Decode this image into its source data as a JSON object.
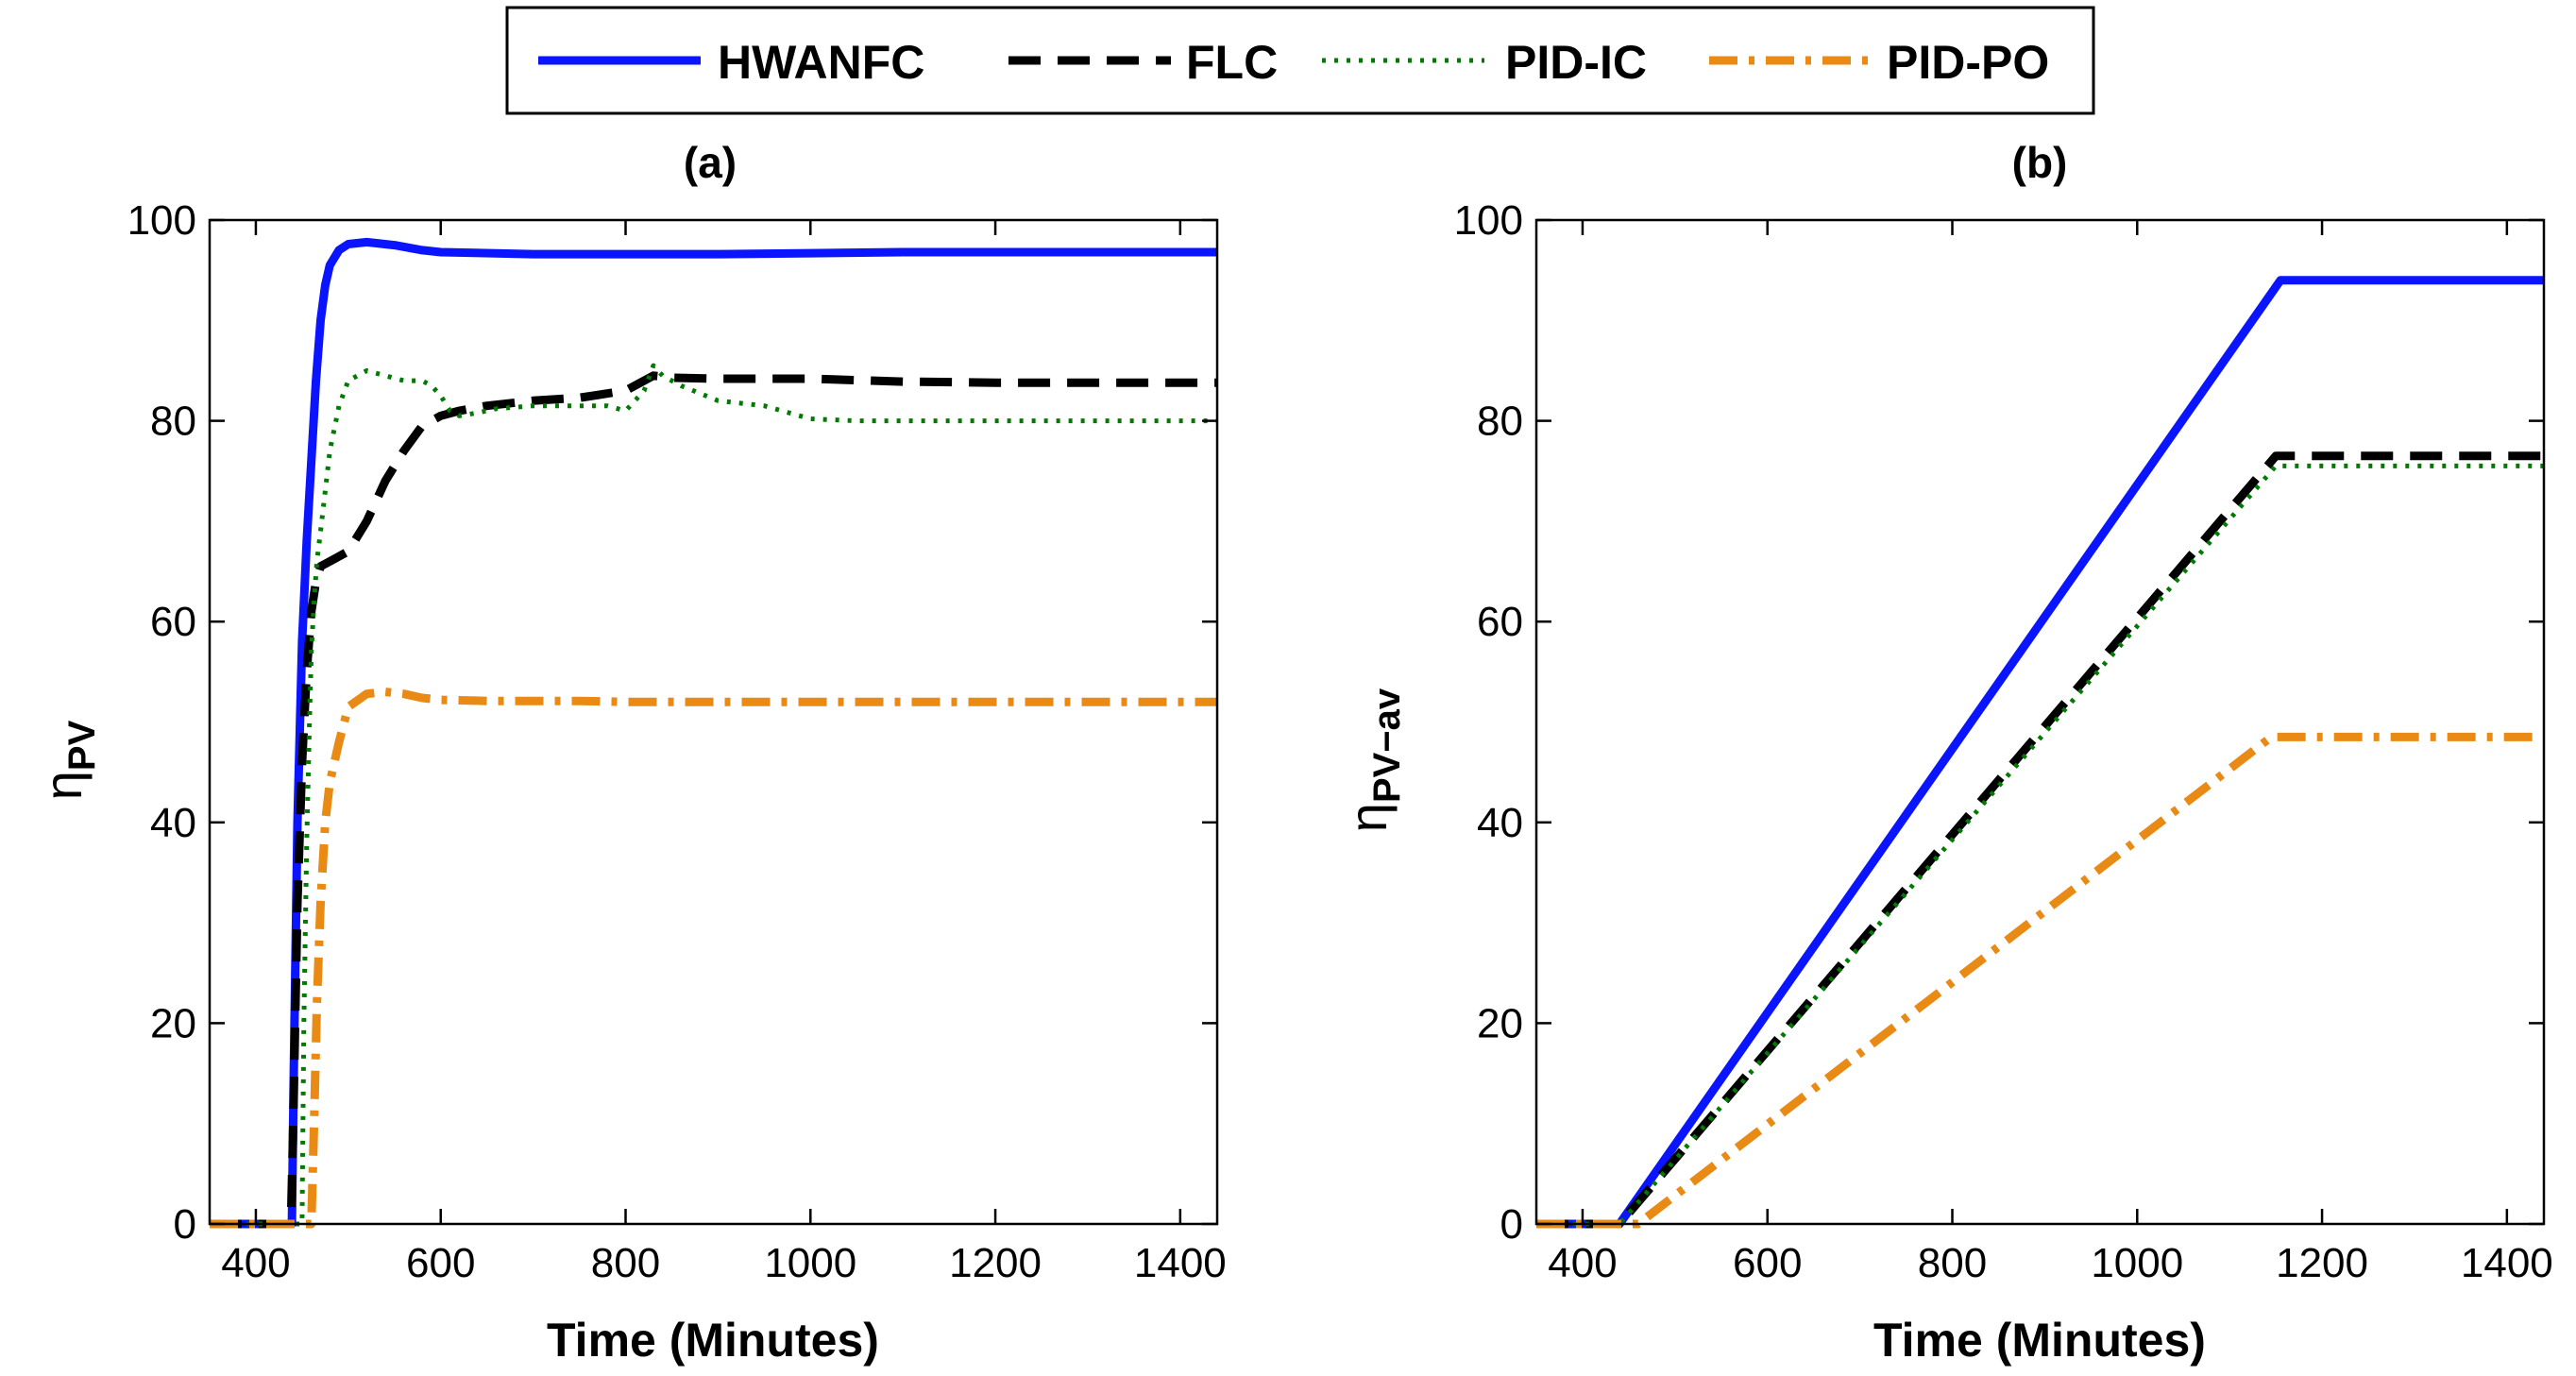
{
  "legend": {
    "entries": [
      "HWANFC",
      "FLC",
      "PID-IC",
      "PID-PO"
    ]
  },
  "series_styles": [
    {
      "name": "HWANFC",
      "color": "#0a14ff",
      "dash": "solid"
    },
    {
      "name": "FLC",
      "color": "#000000",
      "dash": "dashed"
    },
    {
      "name": "PID-IC",
      "color": "#007a00",
      "dash": "dotted"
    },
    {
      "name": "PID-PO",
      "color": "#e88a14",
      "dash": "dash-dot"
    }
  ],
  "chart_data": [
    {
      "type": "line",
      "title": "(a)",
      "xlabel": "Time (Minutes)",
      "ylabel": "η",
      "ylabel_sub": "PV",
      "xlim": [
        350,
        1440
      ],
      "ylim": [
        0,
        100
      ],
      "xticks": [
        400,
        600,
        800,
        1000,
        1200,
        1400
      ],
      "yticks": [
        0,
        20,
        40,
        60,
        80,
        100
      ],
      "xtick_labels": [
        "400",
        "600",
        "800",
        "1000",
        "1200",
        "1400"
      ],
      "ytick_labels": [
        "0",
        "20",
        "40",
        "60",
        "80",
        "100"
      ],
      "grid": false,
      "legend_position": "top-center (shared)",
      "series": [
        {
          "name": "HWANFC",
          "x": [
            350,
            439,
            441,
            445,
            450,
            455,
            460,
            465,
            470,
            475,
            480,
            490,
            500,
            520,
            550,
            580,
            600,
            700,
            800,
            900,
            1000,
            1100,
            1200,
            1300,
            1440
          ],
          "y": [
            0,
            0,
            15,
            40,
            58,
            68,
            76,
            84,
            90,
            93.5,
            95.5,
            97,
            97.6,
            97.8,
            97.5,
            97,
            96.8,
            96.6,
            96.6,
            96.6,
            96.7,
            96.8,
            96.8,
            96.8,
            96.8
          ]
        },
        {
          "name": "FLC",
          "x": [
            350,
            438,
            440,
            445,
            450,
            455,
            460,
            465,
            470,
            480,
            500,
            520,
            540,
            560,
            580,
            600,
            620,
            650,
            700,
            750,
            800,
            830,
            850,
            900,
            1000,
            1100,
            1200,
            1300,
            1440
          ],
          "y": [
            0,
            0,
            8,
            32,
            46,
            55,
            61,
            64,
            65.5,
            66,
            67,
            70,
            74,
            77,
            79.5,
            80.5,
            81,
            81.5,
            82,
            82.3,
            83,
            84.5,
            84.3,
            84.2,
            84.2,
            83.9,
            83.8,
            83.8,
            83.8
          ]
        },
        {
          "name": "PID-IC",
          "x": [
            350,
            450,
            452,
            455,
            458,
            460,
            463,
            466,
            470,
            475,
            480,
            490,
            500,
            520,
            540,
            560,
            580,
            590,
            600,
            610,
            620,
            640,
            660,
            700,
            750,
            780,
            800,
            820,
            830,
            840,
            860,
            900,
            950,
            1000,
            1050,
            1100,
            1200,
            1300,
            1440
          ],
          "y": [
            0,
            0,
            20,
            38,
            50,
            57,
            62,
            66,
            69,
            73,
            77,
            81.5,
            84,
            85,
            84.5,
            84,
            84,
            83.5,
            82.5,
            81,
            80.5,
            80.8,
            81.2,
            81.5,
            81.5,
            81.5,
            81,
            83,
            85.5,
            84.5,
            83.5,
            82,
            81.5,
            80.2,
            80,
            80,
            80,
            80,
            80
          ]
        },
        {
          "name": "PID-PO",
          "x": [
            350,
            460,
            463,
            466,
            470,
            475,
            480,
            490,
            500,
            520,
            540,
            560,
            580,
            600,
            650,
            700,
            750,
            800,
            850,
            900,
            1000,
            1100,
            1200,
            1300,
            1440
          ],
          "y": [
            0,
            0,
            10,
            22,
            32,
            40,
            44,
            48,
            51.5,
            52.8,
            53,
            52.8,
            52.4,
            52.2,
            52.1,
            52.1,
            52.1,
            52,
            52,
            52,
            52,
            52,
            52,
            52,
            52
          ]
        }
      ]
    },
    {
      "type": "line",
      "title": "(b)",
      "xlabel": "Time (Minutes)",
      "ylabel": "η",
      "ylabel_sub": "PV−av",
      "xlim": [
        350,
        1440
      ],
      "ylim": [
        0,
        100
      ],
      "xticks": [
        400,
        600,
        800,
        1000,
        1200,
        1400
      ],
      "yticks": [
        0,
        20,
        40,
        60,
        80,
        100
      ],
      "xtick_labels": [
        "400",
        "600",
        "800",
        "1000",
        "1200",
        "1400"
      ],
      "ytick_labels": [
        "0",
        "20",
        "40",
        "60",
        "80",
        "100"
      ],
      "grid": false,
      "legend_position": "top-center (shared)",
      "series": [
        {
          "name": "HWANFC",
          "x": [
            350,
            440,
            1155,
            1440
          ],
          "y": [
            0,
            0,
            94,
            94
          ]
        },
        {
          "name": "FLC",
          "x": [
            350,
            440,
            1150,
            1440
          ],
          "y": [
            0,
            0,
            76.5,
            76.5
          ]
        },
        {
          "name": "PID-IC",
          "x": [
            350,
            440,
            1150,
            1440
          ],
          "y": [
            0,
            0,
            75.5,
            75.5
          ]
        },
        {
          "name": "PID-PO",
          "x": [
            350,
            460,
            1145,
            1440
          ],
          "y": [
            0,
            0,
            48.5,
            48.5
          ]
        }
      ]
    }
  ]
}
